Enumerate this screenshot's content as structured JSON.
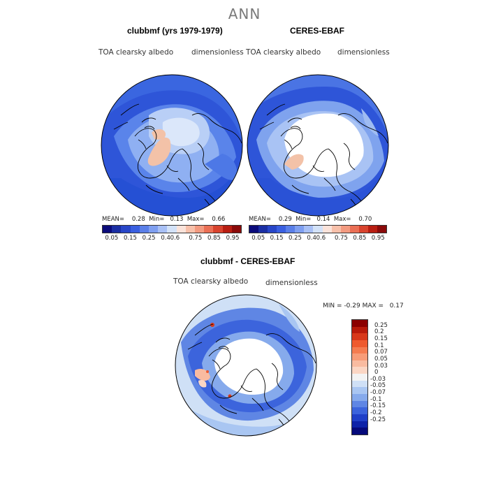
{
  "title": "ANN",
  "panels": [
    {
      "title": "clubbmf (yrs 1979-1979)",
      "var_label": "TOA clearsky albedo",
      "units": "dimensionless",
      "stats": {
        "mean_label": "MEAN=",
        "mean": "0.28",
        "min_label": "Min=",
        "min": "0.13",
        "max_label": "Max=",
        "max": "0.66"
      }
    },
    {
      "title": "CERES-EBAF",
      "var_label": "TOA clearsky albedo",
      "units": "dimensionless",
      "stats": {
        "mean_label": "MEAN=",
        "mean": "0.29",
        "min_label": "Min=",
        "min": "0.14",
        "max_label": "Max=",
        "max": "0.70"
      }
    }
  ],
  "shared_colorbar": {
    "colors": [
      "#0b0b7a",
      "#1a2ea3",
      "#2846c8",
      "#3a5fe0",
      "#5a7fe8",
      "#7f9ff0",
      "#a8c0f5",
      "#d3e2f8",
      "#fbe3da",
      "#f7c0aa",
      "#f29a80",
      "#ea6f55",
      "#d8432e",
      "#b81e12",
      "#8a0a0a"
    ],
    "tick_labels": [
      "0.05",
      "0.15",
      "0.25",
      "0.4",
      "0.6",
      "0.75",
      "0.85",
      "0.95"
    ]
  },
  "diff_panel": {
    "title": "clubbmf - CERES-EBAF",
    "var_label": "TOA clearsky albedo",
    "units": "dimensionless",
    "stats": {
      "min_label": "MIN =",
      "min": "-0.29",
      "max_label": "MAX =",
      "max": "0.17"
    },
    "colorbar": {
      "colors": [
        "#8b0000",
        "#b81a0a",
        "#d8381a",
        "#ee5a2e",
        "#f47c50",
        "#f79c78",
        "#f9bba0",
        "#fbd6c4",
        "#f3f3f3",
        "#cfe0f6",
        "#a9c6f2",
        "#86aaec",
        "#5f86e4",
        "#3c64dc",
        "#2040c8",
        "#0d22a8",
        "#05097a"
      ],
      "tick_labels": [
        "0.25",
        "0.2",
        "0.15",
        "0.1",
        "0.07",
        "0.05",
        "0.03",
        "0",
        "-0.03",
        "-0.05",
        "-0.07",
        "-0.1",
        "-0.15",
        "-0.2",
        "-0.25"
      ]
    }
  },
  "colors": {
    "land_outline": "#000000",
    "white": "#ffffff"
  }
}
